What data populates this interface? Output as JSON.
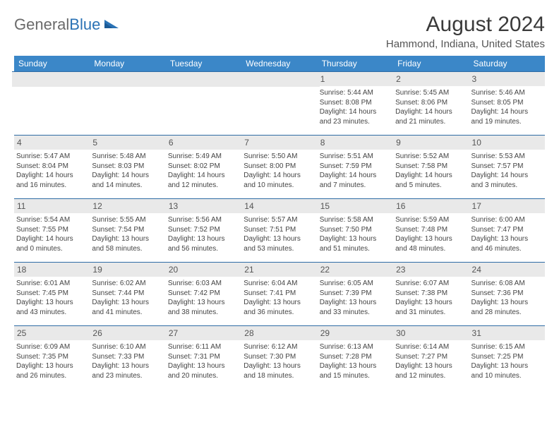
{
  "logo": {
    "text1": "General",
    "text2": "Blue"
  },
  "header": {
    "title": "August 2024",
    "location": "Hammond, Indiana, United States"
  },
  "colors": {
    "header_bg": "#3b87c8",
    "header_text": "#ffffff",
    "daynum_bg": "#e9e9e9",
    "rule": "#2f6ca5",
    "text": "#444444"
  },
  "weekdays": [
    "Sunday",
    "Monday",
    "Tuesday",
    "Wednesday",
    "Thursday",
    "Friday",
    "Saturday"
  ],
  "weeks": [
    [
      null,
      null,
      null,
      null,
      {
        "n": "1",
        "sr": "5:44 AM",
        "ss": "8:08 PM",
        "d1": "Daylight: 14 hours",
        "d2": "and 23 minutes."
      },
      {
        "n": "2",
        "sr": "5:45 AM",
        "ss": "8:06 PM",
        "d1": "Daylight: 14 hours",
        "d2": "and 21 minutes."
      },
      {
        "n": "3",
        "sr": "5:46 AM",
        "ss": "8:05 PM",
        "d1": "Daylight: 14 hours",
        "d2": "and 19 minutes."
      }
    ],
    [
      {
        "n": "4",
        "sr": "5:47 AM",
        "ss": "8:04 PM",
        "d1": "Daylight: 14 hours",
        "d2": "and 16 minutes."
      },
      {
        "n": "5",
        "sr": "5:48 AM",
        "ss": "8:03 PM",
        "d1": "Daylight: 14 hours",
        "d2": "and 14 minutes."
      },
      {
        "n": "6",
        "sr": "5:49 AM",
        "ss": "8:02 PM",
        "d1": "Daylight: 14 hours",
        "d2": "and 12 minutes."
      },
      {
        "n": "7",
        "sr": "5:50 AM",
        "ss": "8:00 PM",
        "d1": "Daylight: 14 hours",
        "d2": "and 10 minutes."
      },
      {
        "n": "8",
        "sr": "5:51 AM",
        "ss": "7:59 PM",
        "d1": "Daylight: 14 hours",
        "d2": "and 7 minutes."
      },
      {
        "n": "9",
        "sr": "5:52 AM",
        "ss": "7:58 PM",
        "d1": "Daylight: 14 hours",
        "d2": "and 5 minutes."
      },
      {
        "n": "10",
        "sr": "5:53 AM",
        "ss": "7:57 PM",
        "d1": "Daylight: 14 hours",
        "d2": "and 3 minutes."
      }
    ],
    [
      {
        "n": "11",
        "sr": "5:54 AM",
        "ss": "7:55 PM",
        "d1": "Daylight: 14 hours",
        "d2": "and 0 minutes."
      },
      {
        "n": "12",
        "sr": "5:55 AM",
        "ss": "7:54 PM",
        "d1": "Daylight: 13 hours",
        "d2": "and 58 minutes."
      },
      {
        "n": "13",
        "sr": "5:56 AM",
        "ss": "7:52 PM",
        "d1": "Daylight: 13 hours",
        "d2": "and 56 minutes."
      },
      {
        "n": "14",
        "sr": "5:57 AM",
        "ss": "7:51 PM",
        "d1": "Daylight: 13 hours",
        "d2": "and 53 minutes."
      },
      {
        "n": "15",
        "sr": "5:58 AM",
        "ss": "7:50 PM",
        "d1": "Daylight: 13 hours",
        "d2": "and 51 minutes."
      },
      {
        "n": "16",
        "sr": "5:59 AM",
        "ss": "7:48 PM",
        "d1": "Daylight: 13 hours",
        "d2": "and 48 minutes."
      },
      {
        "n": "17",
        "sr": "6:00 AM",
        "ss": "7:47 PM",
        "d1": "Daylight: 13 hours",
        "d2": "and 46 minutes."
      }
    ],
    [
      {
        "n": "18",
        "sr": "6:01 AM",
        "ss": "7:45 PM",
        "d1": "Daylight: 13 hours",
        "d2": "and 43 minutes."
      },
      {
        "n": "19",
        "sr": "6:02 AM",
        "ss": "7:44 PM",
        "d1": "Daylight: 13 hours",
        "d2": "and 41 minutes."
      },
      {
        "n": "20",
        "sr": "6:03 AM",
        "ss": "7:42 PM",
        "d1": "Daylight: 13 hours",
        "d2": "and 38 minutes."
      },
      {
        "n": "21",
        "sr": "6:04 AM",
        "ss": "7:41 PM",
        "d1": "Daylight: 13 hours",
        "d2": "and 36 minutes."
      },
      {
        "n": "22",
        "sr": "6:05 AM",
        "ss": "7:39 PM",
        "d1": "Daylight: 13 hours",
        "d2": "and 33 minutes."
      },
      {
        "n": "23",
        "sr": "6:07 AM",
        "ss": "7:38 PM",
        "d1": "Daylight: 13 hours",
        "d2": "and 31 minutes."
      },
      {
        "n": "24",
        "sr": "6:08 AM",
        "ss": "7:36 PM",
        "d1": "Daylight: 13 hours",
        "d2": "and 28 minutes."
      }
    ],
    [
      {
        "n": "25",
        "sr": "6:09 AM",
        "ss": "7:35 PM",
        "d1": "Daylight: 13 hours",
        "d2": "and 26 minutes."
      },
      {
        "n": "26",
        "sr": "6:10 AM",
        "ss": "7:33 PM",
        "d1": "Daylight: 13 hours",
        "d2": "and 23 minutes."
      },
      {
        "n": "27",
        "sr": "6:11 AM",
        "ss": "7:31 PM",
        "d1": "Daylight: 13 hours",
        "d2": "and 20 minutes."
      },
      {
        "n": "28",
        "sr": "6:12 AM",
        "ss": "7:30 PM",
        "d1": "Daylight: 13 hours",
        "d2": "and 18 minutes."
      },
      {
        "n": "29",
        "sr": "6:13 AM",
        "ss": "7:28 PM",
        "d1": "Daylight: 13 hours",
        "d2": "and 15 minutes."
      },
      {
        "n": "30",
        "sr": "6:14 AM",
        "ss": "7:27 PM",
        "d1": "Daylight: 13 hours",
        "d2": "and 12 minutes."
      },
      {
        "n": "31",
        "sr": "6:15 AM",
        "ss": "7:25 PM",
        "d1": "Daylight: 13 hours",
        "d2": "and 10 minutes."
      }
    ]
  ]
}
